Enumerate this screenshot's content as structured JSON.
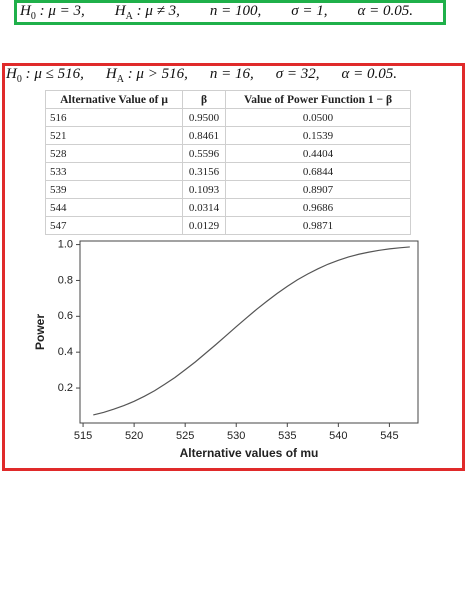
{
  "first_hypothesis": {
    "terms": [
      {
        "base": "H",
        "sub": "0",
        "text": " : μ = 3,"
      },
      {
        "base": "H",
        "sub": "A",
        "text": " : μ ≠ 3,"
      },
      {
        "text": "n = 100,"
      },
      {
        "text": "σ = 1,"
      },
      {
        "text": "α = 0.05."
      }
    ]
  },
  "second_hypothesis": {
    "terms": [
      {
        "base": "H",
        "sub": "0",
        "text": " : μ ≤ 516,"
      },
      {
        "base": "H",
        "sub": "A",
        "text": " : μ > 516,"
      },
      {
        "text": "n = 16,"
      },
      {
        "text": "σ = 32,"
      },
      {
        "text": "α = 0.05."
      }
    ]
  },
  "table": {
    "headers": [
      "Alternative Value of μ",
      "β",
      "Value of Power Function 1 − β"
    ],
    "rows": [
      [
        "516",
        "0.9500",
        "0.0500"
      ],
      [
        "521",
        "0.8461",
        "0.1539"
      ],
      [
        "528",
        "0.5596",
        "0.4404"
      ],
      [
        "533",
        "0.3156",
        "0.6844"
      ],
      [
        "539",
        "0.1093",
        "0.8907"
      ],
      [
        "544",
        "0.0314",
        "0.9686"
      ],
      [
        "547",
        "0.0129",
        "0.9871"
      ]
    ]
  },
  "chart_data": {
    "type": "line",
    "x_label": "Alternative values of mu",
    "y_label": "Power",
    "x": [
      516,
      517,
      518,
      519,
      520,
      521,
      522,
      523,
      524,
      525,
      526,
      527,
      528,
      529,
      530,
      531,
      532,
      533,
      534,
      535,
      536,
      537,
      538,
      539,
      540,
      541,
      542,
      543,
      544,
      545,
      546,
      547
    ],
    "series": [
      {
        "color": "#555555",
        "values": [
          0.05,
          0.064,
          0.082,
          0.102,
          0.126,
          0.154,
          0.185,
          0.221,
          0.259,
          0.302,
          0.346,
          0.394,
          0.442,
          0.492,
          0.542,
          0.591,
          0.639,
          0.684,
          0.727,
          0.767,
          0.804,
          0.836,
          0.865,
          0.891,
          0.912,
          0.931,
          0.946,
          0.958,
          0.968,
          0.976,
          0.982,
          0.987
        ]
      }
    ],
    "xlim": [
      514.7,
      547.8
    ],
    "ylim": [
      0.005,
      1.02
    ],
    "xticks": [
      515,
      520,
      525,
      530,
      535,
      540,
      545
    ],
    "yticks": [
      0.2,
      0.4,
      0.6,
      0.8,
      {
        "value": 1,
        "label": "1.0"
      }
    ]
  }
}
